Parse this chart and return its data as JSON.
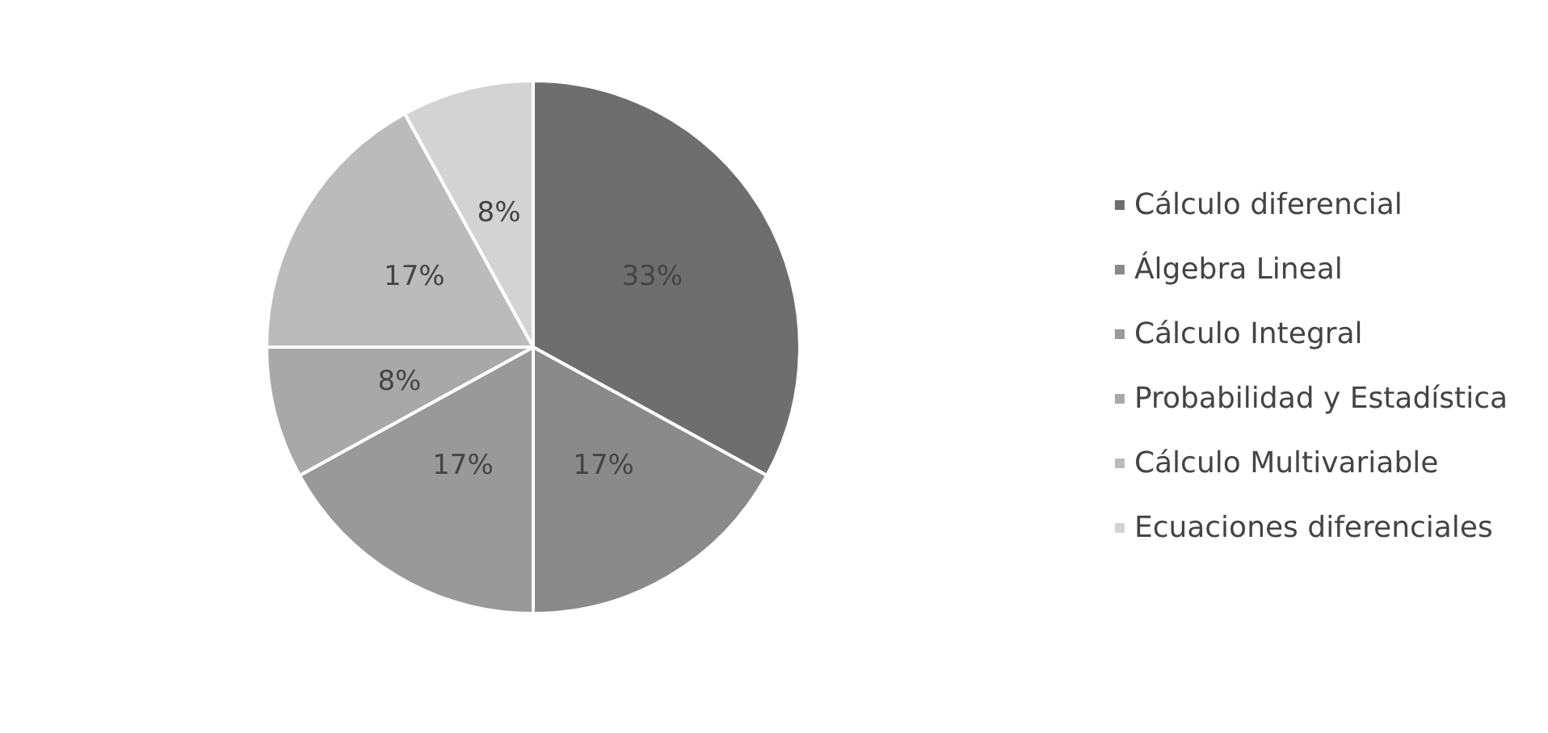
{
  "chart_data": {
    "type": "pie",
    "categories": [
      "Cálculo diferencial",
      "Álgebra Lineal",
      "Cálculo Integral",
      "Probabilidad y Estadística",
      "Cálculo Multivariable",
      "Ecuaciones diferenciales"
    ],
    "values": [
      33,
      17,
      17,
      8,
      17,
      8
    ],
    "value_labels": [
      "33%",
      "17%",
      "17%",
      "8%",
      "17%",
      "8%"
    ],
    "colors": [
      "#6e6e6e",
      "#8a8a8a",
      "#999999",
      "#a8a8a8",
      "#bbbbbb",
      "#d3d3d3"
    ],
    "legend": "right"
  }
}
